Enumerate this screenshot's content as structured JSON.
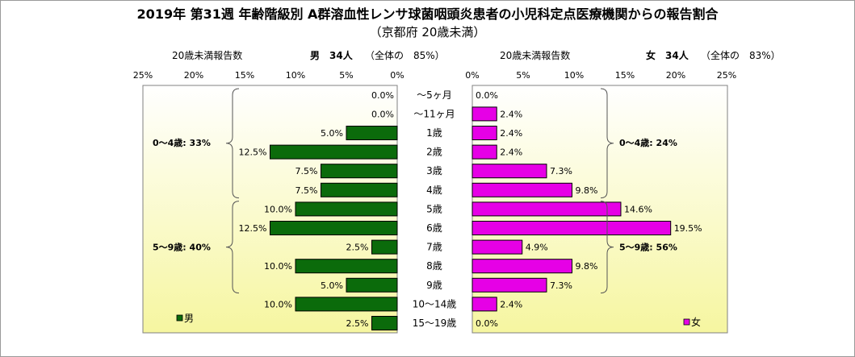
{
  "title": "2019年 第31週 年齢階級別 A群溶血性レンサ球菌咽頭炎患者の小児科定点医療機関からの報告割合",
  "subtitle": "（京都府 20歳未満）",
  "male_header": {
    "report_label": "20歳未満報告数",
    "sex_count": "男　34人",
    "share": "（全体の　85%）"
  },
  "female_header": {
    "report_label": "20歳未満報告数",
    "sex_count": "女　34人",
    "share": "（全体の　83%）"
  },
  "male_axis_ticks": [
    "25%",
    "20%",
    "15%",
    "10%",
    "5%",
    "0%"
  ],
  "female_axis_ticks": [
    "0%",
    "5%",
    "10%",
    "15%",
    "20%",
    "25%"
  ],
  "colors": {
    "male": "#0b6b0b",
    "female": "#e600e6",
    "bar_border": "#000000",
    "panel_top": "#ffffff",
    "panel_bottom": "#f6f6a0"
  },
  "chart_data": {
    "type": "bar",
    "orientation": "horizontal-pyramid",
    "categories": [
      "～5ヶ月",
      "～11ヶ月",
      "1歳",
      "2歳",
      "3歳",
      "4歳",
      "5歳",
      "6歳",
      "7歳",
      "8歳",
      "9歳",
      "10～14歳",
      "15～19歳"
    ],
    "series": [
      {
        "name": "男",
        "values": [
          0.0,
          0.0,
          5.0,
          12.5,
          7.5,
          7.5,
          10.0,
          12.5,
          2.5,
          10.0,
          5.0,
          10.0,
          2.5
        ],
        "labels": [
          "0.0%",
          "0.0%",
          "5.0%",
          "12.5%",
          "7.5%",
          "7.5%",
          "10.0%",
          "12.5%",
          "2.5%",
          "10.0%",
          "5.0%",
          "10.0%",
          "2.5%"
        ]
      },
      {
        "name": "女",
        "values": [
          0.0,
          2.4,
          2.4,
          2.4,
          7.3,
          9.8,
          14.6,
          19.5,
          4.9,
          9.8,
          7.3,
          2.4,
          0.0
        ],
        "labels": [
          "0.0%",
          "2.4%",
          "2.4%",
          "2.4%",
          "7.3%",
          "9.8%",
          "14.6%",
          "19.5%",
          "4.9%",
          "9.8%",
          "7.3%",
          "2.4%",
          "0.0%"
        ]
      }
    ],
    "xlim": [
      0,
      25
    ],
    "unit": "%",
    "annotations": {
      "male_0_4": "0～4歳: 33%",
      "male_5_9": "5～9歳: 40%",
      "female_0_4": "0～4歳: 24%",
      "female_5_9": "5～9歳: 56%"
    },
    "legend": {
      "male": "男",
      "female": "女",
      "placement": "bottom-inside"
    }
  }
}
